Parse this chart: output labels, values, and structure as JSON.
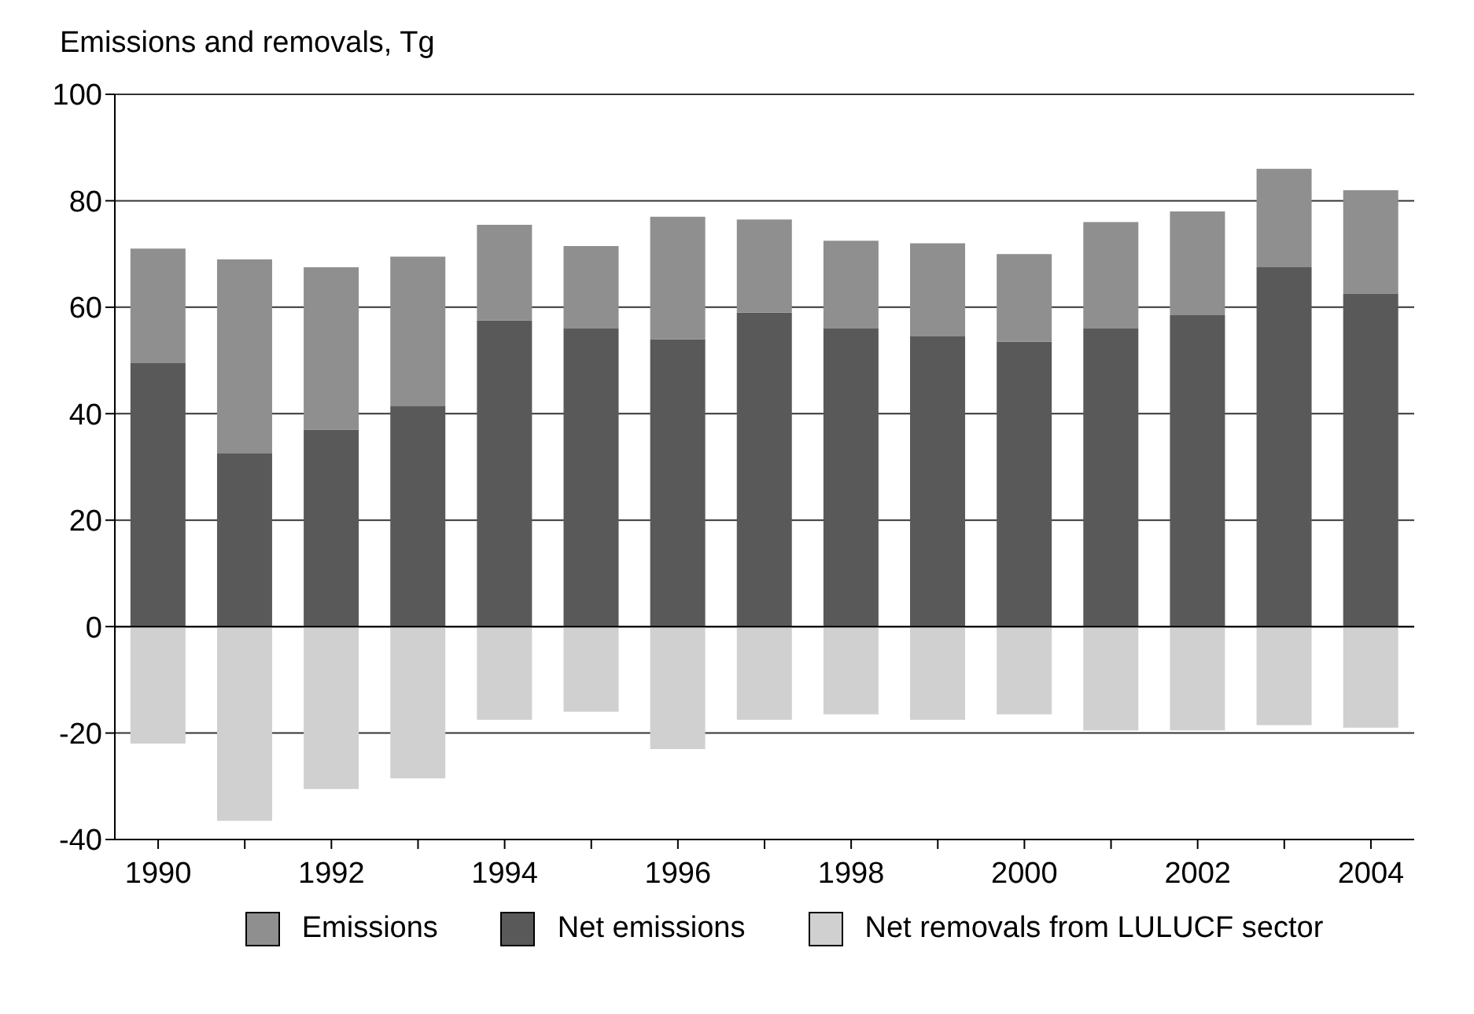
{
  "chart_data": {
    "type": "bar",
    "ylabel": "Emissions and removals, Tg",
    "categories": [
      "1990",
      null,
      "1992",
      null,
      "1994",
      null,
      "1996",
      null,
      "1998",
      null,
      "2000",
      null,
      "2002",
      null,
      "2004"
    ],
    "stacked": true,
    "series": [
      {
        "name": "Net emissions",
        "color": "#595959",
        "values": [
          49.5,
          32.5,
          37,
          41.5,
          57.5,
          56,
          54,
          59,
          56,
          54.5,
          53.5,
          56,
          58.5,
          67.5,
          62.5
        ]
      },
      {
        "name": "Emissions",
        "color": "#8f8f8f",
        "values": [
          21.5,
          36.5,
          30.5,
          28,
          18,
          15.5,
          23,
          17.5,
          16.5,
          17.5,
          16.5,
          20,
          19.5,
          18.5,
          19.5
        ]
      },
      {
        "name": "Net removals from LULUCF sector",
        "color": "#d0d0d0",
        "values": [
          -22,
          -36.5,
          -30.5,
          -28.5,
          -17.5,
          -16,
          -23,
          -17.5,
          -16.5,
          -17.5,
          -16.5,
          -19.5,
          -19.5,
          -18.5,
          -19
        ]
      }
    ],
    "ylim": [
      -40,
      100
    ],
    "yticks": [
      -40,
      -20,
      0,
      20,
      40,
      60,
      80,
      100
    ],
    "grid": "y",
    "legend": "bottom"
  }
}
